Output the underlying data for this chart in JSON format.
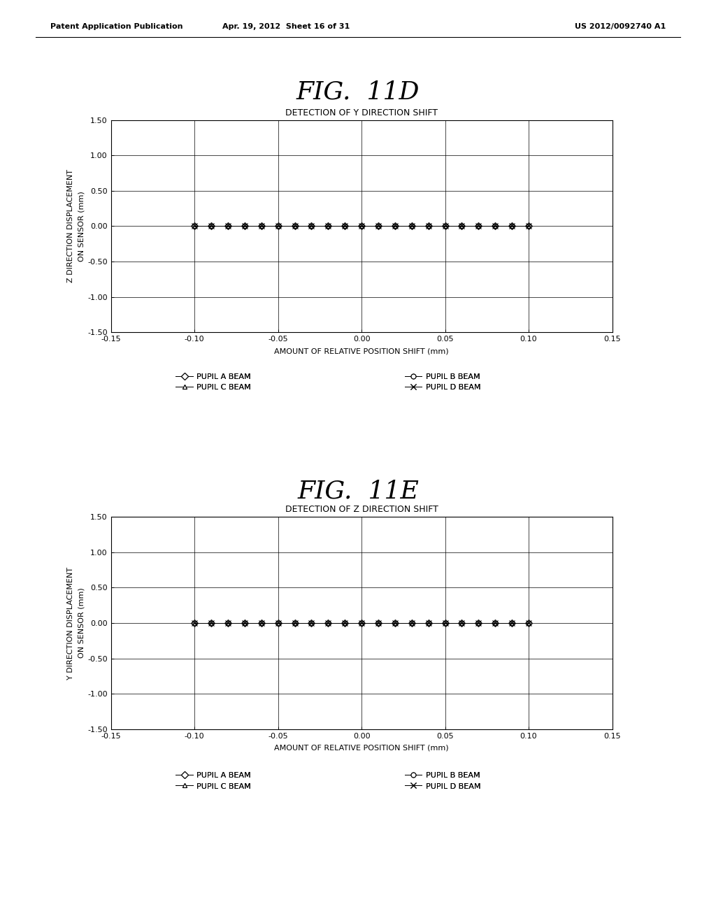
{
  "header_left": "Patent Application Publication",
  "header_center": "Apr. 19, 2012  Sheet 16 of 31",
  "header_right": "US 2012/0092740 A1",
  "fig1_title": "FIG.  11D",
  "fig1_subtitle": "DETECTION OF Y DIRECTION SHIFT",
  "fig1_ylabel_line1": "Z DIRECTION DISPLACEMENT",
  "fig1_ylabel_line2": "ON SENSOR (mm)",
  "fig2_title": "FIG.  11E",
  "fig2_subtitle": "DETECTION OF Z DIRECTION SHIFT",
  "fig2_ylabel_line1": "Y DIRECTION DISPLACEMENT",
  "fig2_ylabel_line2": "ON SENSOR (mm)",
  "xlabel": "AMOUNT OF RELATIVE POSITION SHIFT (mm)",
  "xlim": [
    -0.15,
    0.15
  ],
  "ylim": [
    -1.5,
    1.5
  ],
  "xticks": [
    -0.15,
    -0.1,
    -0.05,
    0.0,
    0.05,
    0.1,
    0.15
  ],
  "xtick_labels": [
    "-0.15",
    "-0.10",
    "-0.05",
    "0.00",
    "0.05",
    "0.10",
    "0.15"
  ],
  "yticks": [
    -1.5,
    -1.0,
    -0.5,
    0.0,
    0.5,
    1.0,
    1.5
  ],
  "ytick_labels": [
    "-1.50",
    "-1.00",
    "-0.50",
    "0.00",
    "0.50",
    "1.00",
    "1.50"
  ],
  "x_data": [
    -0.1,
    -0.09,
    -0.08,
    -0.07,
    -0.06,
    -0.05,
    -0.04,
    -0.03,
    -0.02,
    -0.01,
    0.0,
    0.01,
    0.02,
    0.03,
    0.04,
    0.05,
    0.06,
    0.07,
    0.08,
    0.09,
    0.1
  ],
  "y_zero": [
    0.0,
    0.0,
    0.0,
    0.0,
    0.0,
    0.0,
    0.0,
    0.0,
    0.0,
    0.0,
    0.0,
    0.0,
    0.0,
    0.0,
    0.0,
    0.0,
    0.0,
    0.0,
    0.0,
    0.0,
    0.0
  ],
  "legend_entries": [
    "PUPIL A BEAM",
    "PUPIL B BEAM",
    "PUPIL C BEAM",
    "PUPIL D BEAM"
  ],
  "markers": [
    "D",
    "o",
    "^",
    "x"
  ],
  "marker_sizes": [
    5,
    5,
    5,
    6
  ],
  "line_color": "black",
  "background_color": "white",
  "font_size_subtitle": 9,
  "font_size_axis_label": 8,
  "font_size_tick": 8,
  "font_size_legend": 8,
  "font_size_header": 8,
  "fig_title_fontsize": 26
}
